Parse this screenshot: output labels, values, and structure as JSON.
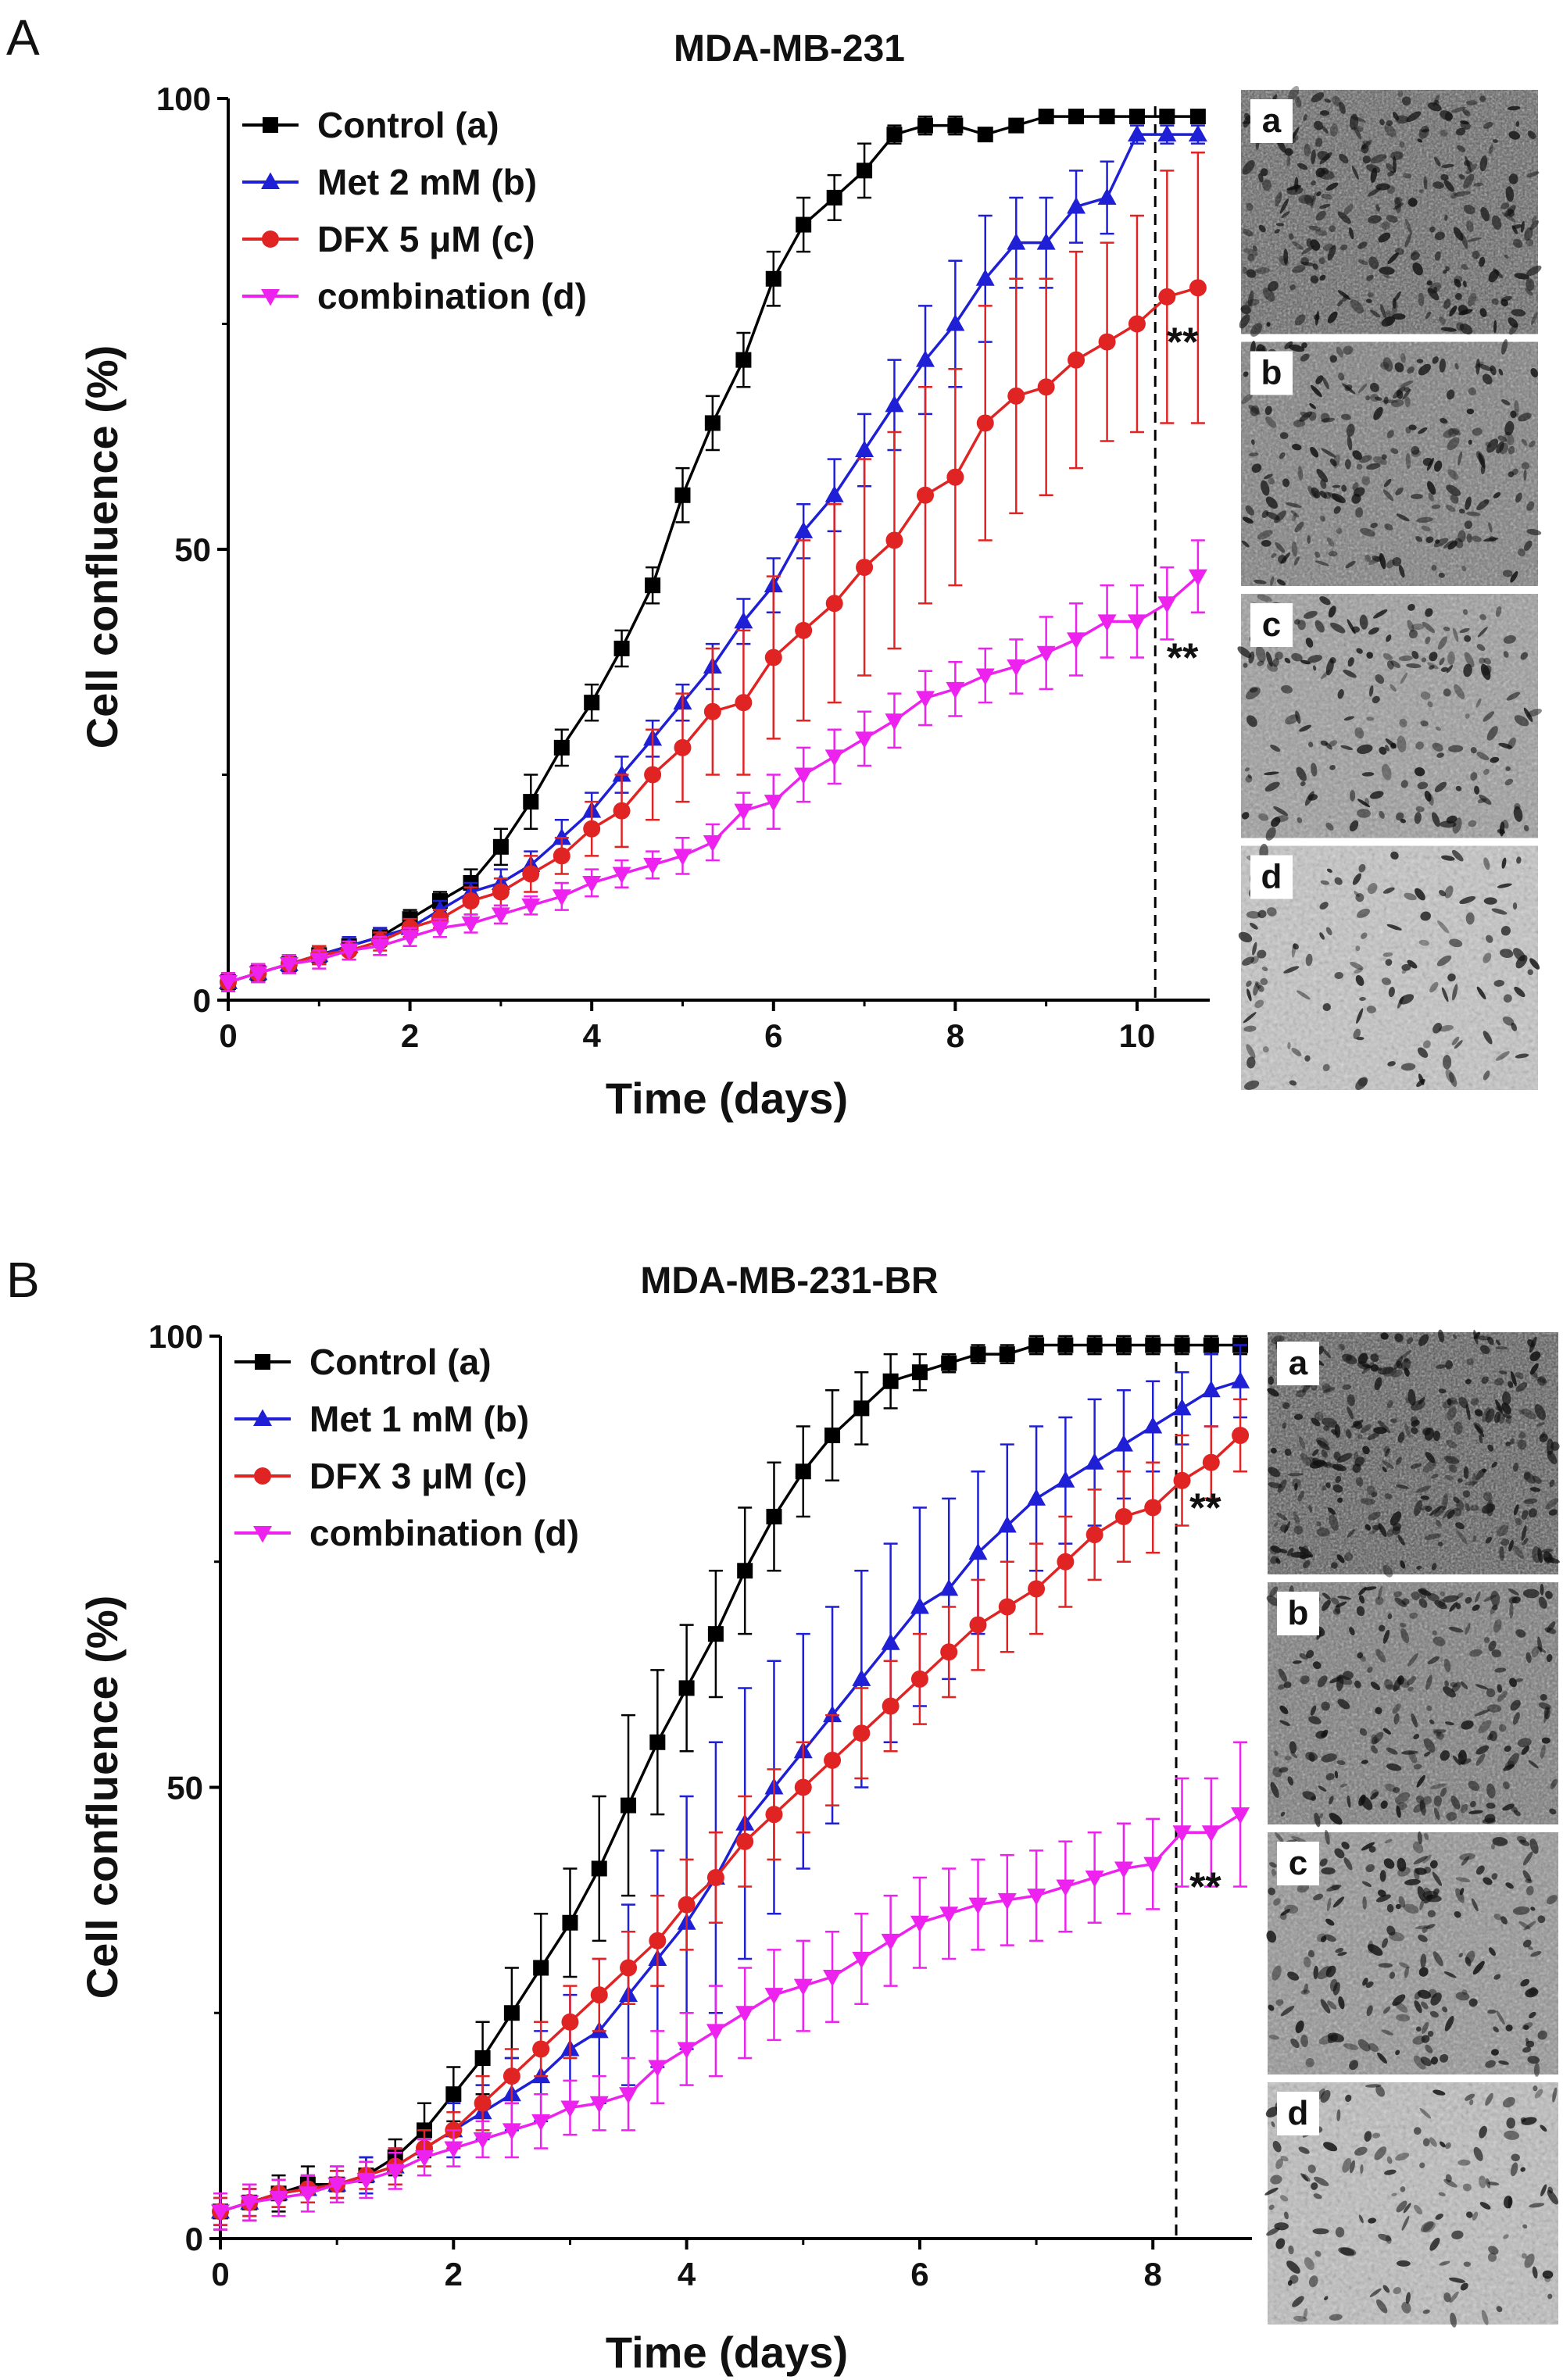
{
  "chart_data": [
    {
      "panel": "A",
      "type": "line",
      "title": "MDA-MB-231",
      "xlabel": "Time (days)",
      "ylabel": "Cell confluence (%)",
      "xlim": [
        0,
        10.8
      ],
      "ylim": [
        0,
        100
      ],
      "xticks": [
        0,
        2,
        4,
        6,
        8,
        10
      ],
      "yticks": [
        0,
        50,
        100
      ],
      "legend_position": "top-left",
      "reference_line_x": 10.2,
      "significance_marks": [
        {
          "text": "**",
          "x": 10.5,
          "y": 73
        },
        {
          "text": "**",
          "x": 10.5,
          "y": 38
        }
      ],
      "series": [
        {
          "name": "Control (a)",
          "color": "#000000",
          "marker": "square",
          "x": [
            0,
            0.33,
            0.67,
            1,
            1.33,
            1.67,
            2,
            2.33,
            2.67,
            3,
            3.33,
            3.67,
            4,
            4.33,
            4.67,
            5,
            5.33,
            5.67,
            6,
            6.33,
            6.67,
            7,
            7.33,
            7.67,
            8,
            8.33,
            8.67,
            9,
            9.33,
            9.67,
            10,
            10.33,
            10.67
          ],
          "y": [
            2,
            3,
            4,
            5,
            6,
            7,
            9,
            11,
            13,
            17,
            22,
            28,
            33,
            39,
            46,
            56,
            64,
            71,
            80,
            86,
            89,
            92,
            96,
            97,
            97,
            96,
            97,
            98,
            98,
            98,
            98,
            98,
            98
          ],
          "err": [
            1,
            1,
            1,
            1,
            1,
            1,
            1,
            1,
            1.5,
            2,
            3,
            2,
            2,
            2,
            2,
            3,
            3,
            3,
            3,
            3,
            2.5,
            3,
            1,
            1,
            1,
            0.5,
            0.5,
            0.5,
            0.5,
            0.5,
            0.5,
            0.5,
            0.5
          ]
        },
        {
          "name": "Met 2 mM (b)",
          "color": "#1f1fd6",
          "marker": "triangle-up",
          "x": [
            0,
            0.33,
            0.67,
            1,
            1.33,
            1.67,
            2,
            2.33,
            2.67,
            3,
            3.33,
            3.67,
            4,
            4.33,
            4.67,
            5,
            5.33,
            5.67,
            6,
            6.33,
            6.67,
            7,
            7.33,
            7.67,
            8,
            8.33,
            8.67,
            9,
            9.33,
            9.67,
            10,
            10.33,
            10.67
          ],
          "y": [
            2,
            3,
            4,
            5,
            6,
            7,
            8,
            10,
            12,
            13,
            15,
            18,
            21,
            25,
            29,
            33,
            37,
            42,
            46,
            52,
            56,
            61,
            66,
            71,
            75,
            80,
            84,
            84,
            88,
            89,
            96,
            96,
            96
          ],
          "err": [
            1,
            1,
            1,
            1,
            1,
            1,
            1,
            1,
            1,
            1.5,
            1.5,
            2,
            2,
            2,
            2,
            2,
            2.5,
            2.5,
            3,
            3,
            4,
            4,
            5,
            6,
            7,
            7,
            5,
            5,
            4,
            4,
            1,
            1,
            1
          ]
        },
        {
          "name": "DFX 5 μM (c)",
          "color": "#e02424",
          "marker": "circle",
          "x": [
            0,
            0.33,
            0.67,
            1,
            1.33,
            1.67,
            2,
            2.33,
            2.67,
            3,
            3.33,
            3.67,
            4,
            4.33,
            4.67,
            5,
            5.33,
            5.67,
            6,
            6.33,
            6.67,
            7,
            7.33,
            7.67,
            8,
            8.33,
            8.67,
            9,
            9.33,
            9.67,
            10,
            10.33,
            10.67
          ],
          "y": [
            2,
            3,
            4,
            5,
            5.5,
            6.5,
            8,
            9,
            11,
            12,
            14,
            16,
            19,
            21,
            25,
            28,
            32,
            33,
            38,
            41,
            44,
            48,
            51,
            56,
            58,
            64,
            67,
            68,
            71,
            73,
            75,
            78,
            79
          ],
          "err": [
            1,
            1,
            1,
            1,
            1,
            1,
            1,
            1,
            1.5,
            1.5,
            2,
            2,
            3,
            4,
            5,
            6,
            7,
            8,
            9,
            10,
            11,
            12,
            12,
            12,
            12,
            13,
            13,
            12,
            12,
            11,
            12,
            14,
            15
          ]
        },
        {
          "name": "combination (d)",
          "color": "#ee22ee",
          "marker": "triangle-down",
          "x": [
            0,
            0.33,
            0.67,
            1,
            1.33,
            1.67,
            2,
            2.33,
            2.67,
            3,
            3.33,
            3.67,
            4,
            4.33,
            4.67,
            5,
            5.33,
            5.67,
            6,
            6.33,
            6.67,
            7,
            7.33,
            7.67,
            8,
            8.33,
            8.67,
            9,
            9.33,
            9.67,
            10,
            10.33,
            10.67
          ],
          "y": [
            2,
            3,
            4,
            4.5,
            5.5,
            6,
            7,
            8,
            8.5,
            9.5,
            10.5,
            11.5,
            13,
            14,
            15,
            16,
            17.5,
            21,
            22,
            25,
            27,
            29,
            31,
            33.5,
            34.5,
            36,
            37,
            38.5,
            40,
            42,
            42,
            44,
            47
          ],
          "err": [
            1,
            1,
            1,
            1,
            1,
            1,
            1,
            1,
            1,
            1,
            1,
            1.5,
            1.5,
            1.5,
            1.5,
            2,
            2,
            2,
            3,
            3,
            3,
            3,
            3,
            3,
            3,
            3,
            3,
            4,
            4,
            4,
            4,
            4,
            4
          ]
        }
      ]
    },
    {
      "panel": "B",
      "type": "line",
      "title": "MDA-MB-231-BR",
      "xlabel": "Time (days)",
      "ylabel": "Cell confluence (%)",
      "xlim": [
        0,
        8.85
      ],
      "ylim": [
        0,
        100
      ],
      "xticks": [
        0,
        2,
        4,
        6,
        8
      ],
      "yticks": [
        0,
        50,
        100
      ],
      "legend_position": "top-left",
      "reference_line_x": 8.2,
      "significance_marks": [
        {
          "text": "**",
          "x": 8.45,
          "y": 81
        },
        {
          "text": "**",
          "x": 8.45,
          "y": 39
        }
      ],
      "series": [
        {
          "name": "Control (a)",
          "color": "#000000",
          "marker": "square",
          "x": [
            0,
            0.25,
            0.5,
            0.75,
            1,
            1.25,
            1.5,
            1.75,
            2,
            2.25,
            2.5,
            2.75,
            3,
            3.25,
            3.5,
            3.75,
            4,
            4.25,
            4.5,
            4.75,
            5,
            5.25,
            5.5,
            5.75,
            6,
            6.25,
            6.5,
            6.75,
            7,
            7.25,
            7.5,
            7.75,
            8,
            8.25,
            8.5,
            8.75
          ],
          "y": [
            3,
            4,
            5,
            6,
            6,
            7,
            9,
            12,
            16,
            20,
            25,
            30,
            35,
            41,
            48,
            55,
            61,
            67,
            74,
            80,
            85,
            89,
            92,
            95,
            96,
            97,
            98,
            98,
            99,
            99,
            99,
            99,
            99,
            99,
            99,
            99
          ],
          "err": [
            2,
            2,
            2,
            2,
            2,
            2,
            2,
            3,
            3,
            4,
            5,
            6,
            6,
            8,
            10,
            8,
            7,
            7,
            7,
            6,
            5,
            5,
            4,
            3,
            2,
            1,
            1,
            1,
            1,
            1,
            1,
            1,
            1,
            1,
            1,
            1
          ]
        },
        {
          "name": "Met 1 mM (b)",
          "color": "#1f1fd6",
          "marker": "triangle-up",
          "x": [
            0,
            0.25,
            0.5,
            0.75,
            1,
            1.25,
            1.5,
            1.75,
            2,
            2.25,
            2.5,
            2.75,
            3,
            3.25,
            3.5,
            3.75,
            4,
            4.25,
            4.5,
            4.75,
            5,
            5.25,
            5.5,
            5.75,
            6,
            6.25,
            6.5,
            6.75,
            7,
            7.25,
            7.5,
            7.75,
            8,
            8.25,
            8.5,
            8.75
          ],
          "y": [
            3,
            4,
            5,
            5.5,
            6,
            7,
            8,
            10,
            12,
            14,
            16,
            18,
            21,
            23,
            27,
            31,
            35,
            40,
            46,
            50,
            54,
            58,
            62,
            66,
            70,
            72,
            76,
            79,
            82,
            84,
            86,
            88,
            90,
            92,
            94,
            95
          ],
          "err": [
            1.5,
            1.5,
            1.5,
            1.5,
            1.5,
            2,
            2,
            2,
            3,
            3,
            4,
            5,
            6,
            8,
            10,
            12,
            14,
            15,
            15,
            14,
            13,
            12,
            12,
            11,
            11,
            10,
            9,
            9,
            8,
            7,
            7,
            6,
            5,
            4,
            4,
            4
          ]
        },
        {
          "name": "DFX 3 μM (c)",
          "color": "#e02424",
          "marker": "circle",
          "x": [
            0,
            0.25,
            0.5,
            0.75,
            1,
            1.25,
            1.5,
            1.75,
            2,
            2.25,
            2.5,
            2.75,
            3,
            3.25,
            3.5,
            3.75,
            4,
            4.25,
            4.5,
            4.75,
            5,
            5.25,
            5.5,
            5.75,
            6,
            6.25,
            6.5,
            6.75,
            7,
            7.25,
            7.5,
            7.75,
            8,
            8.25,
            8.5,
            8.75
          ],
          "y": [
            3,
            4,
            5,
            5.5,
            6,
            7,
            8,
            10,
            12,
            15,
            18,
            21,
            24,
            27,
            30,
            33,
            37,
            40,
            44,
            47,
            50,
            53,
            56,
            59,
            62,
            65,
            68,
            70,
            72,
            75,
            78,
            80,
            81,
            84,
            86,
            89
          ],
          "err": [
            1.5,
            1.5,
            1.5,
            1.5,
            1.5,
            1.5,
            2,
            2,
            2,
            3,
            3,
            3,
            4,
            4,
            4,
            5,
            5,
            5,
            5,
            5,
            5,
            5,
            5,
            5,
            5,
            5,
            5,
            5,
            5,
            5,
            5,
            5,
            5,
            5,
            4,
            4
          ]
        },
        {
          "name": "combination (d)",
          "color": "#ee22ee",
          "marker": "triangle-down",
          "x": [
            0,
            0.25,
            0.5,
            0.75,
            1,
            1.25,
            1.5,
            1.75,
            2,
            2.25,
            2.5,
            2.75,
            3,
            3.25,
            3.5,
            3.75,
            4,
            4.25,
            4.5,
            4.75,
            5,
            5.25,
            5.5,
            5.75,
            6,
            6.25,
            6.5,
            6.75,
            7,
            7.25,
            7.5,
            7.75,
            8,
            8.25,
            8.5,
            8.75
          ],
          "y": [
            3,
            4,
            4.5,
            5,
            6,
            6.5,
            7.5,
            9,
            10,
            11,
            12,
            13,
            14.5,
            15,
            16,
            19,
            21,
            23,
            25,
            27,
            28,
            29,
            31,
            33,
            35,
            36,
            37,
            37.5,
            38,
            39,
            40,
            41,
            41.5,
            45,
            45,
            47
          ],
          "err": [
            2,
            2,
            2,
            2,
            2,
            2,
            2,
            2,
            2,
            2,
            3,
            3,
            3,
            3,
            4,
            4,
            4,
            5,
            5,
            5,
            5,
            5,
            5,
            5,
            5,
            5,
            5,
            5,
            5,
            5,
            5,
            5,
            5,
            6,
            6,
            8
          ]
        }
      ]
    }
  ],
  "insets": [
    {
      "panel": "A",
      "labels": [
        "a",
        "b",
        "c",
        "d"
      ],
      "densities": [
        0.82,
        0.68,
        0.5,
        0.28
      ]
    },
    {
      "panel": "B",
      "labels": [
        "a",
        "b",
        "c",
        "d"
      ],
      "densities": [
        0.88,
        0.7,
        0.55,
        0.32
      ]
    }
  ]
}
